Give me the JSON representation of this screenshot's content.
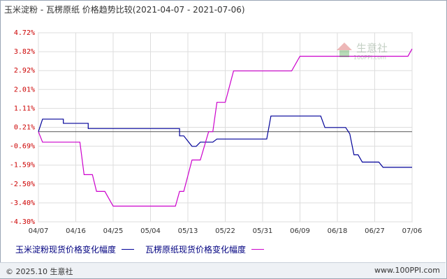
{
  "title": "玉米淀粉 - 瓦楞原纸 价格趋势比较(2021-04-07 - 2021-07-06)",
  "footer": {
    "copyright": "© 2025.10 生意社",
    "url": "www.100PPI.com"
  },
  "watermark": {
    "name": "生意社",
    "url": "100PPI.com"
  },
  "colors": {
    "series1": "#000099",
    "series2": "#cc00cc",
    "grid": "#dddddd",
    "zero": "#555555",
    "tick_label": "#cc0000"
  },
  "chart_data": {
    "type": "line",
    "title": "玉米淀粉 - 瓦楞原纸 价格趋势比较(2021-04-07 - 2021-07-06)",
    "y_ticks": [
      "4.72%",
      "3.82%",
      "2.92%",
      "2.01%",
      "1.11%",
      "0.21%",
      "-0.69%",
      "-1.59%",
      "-2.50%",
      "-3.40%",
      "-4.30%"
    ],
    "ylim": [
      -4.3,
      4.72
    ],
    "x_ticks": [
      "04/07",
      "04/16",
      "04/25",
      "05/04",
      "05/13",
      "05/22",
      "05/31",
      "06/09",
      "06/18",
      "06/27",
      "07/06"
    ],
    "xlim": [
      "2021-04-07",
      "2021-07-06"
    ],
    "grid": true,
    "legend_position": "bottom",
    "series": [
      {
        "name": "玉米淀粉现货价格变化幅度",
        "color": "#000099",
        "points": [
          [
            "2021-04-07",
            0.0
          ],
          [
            "2021-04-08",
            0.6
          ],
          [
            "2021-04-13",
            0.6
          ],
          [
            "2021-04-13",
            0.4
          ],
          [
            "2021-04-19",
            0.4
          ],
          [
            "2021-04-19",
            0.15
          ],
          [
            "2021-05-11",
            0.15
          ],
          [
            "2021-05-11",
            -0.2
          ],
          [
            "2021-05-12",
            -0.2
          ],
          [
            "2021-05-14",
            -0.7
          ],
          [
            "2021-05-15",
            -0.7
          ],
          [
            "2021-05-16",
            -0.5
          ],
          [
            "2021-05-19",
            -0.5
          ],
          [
            "2021-05-20",
            -0.35
          ],
          [
            "2021-06-01",
            -0.35
          ],
          [
            "2021-06-02",
            0.75
          ],
          [
            "2021-06-14",
            0.75
          ],
          [
            "2021-06-15",
            0.2
          ],
          [
            "2021-06-20",
            0.2
          ],
          [
            "2021-06-21",
            -0.1
          ],
          [
            "2021-06-22",
            -1.1
          ],
          [
            "2021-06-23",
            -1.1
          ],
          [
            "2021-06-24",
            -1.45
          ],
          [
            "2021-06-28",
            -1.45
          ],
          [
            "2021-06-29",
            -1.7
          ],
          [
            "2021-07-06",
            -1.7
          ]
        ]
      },
      {
        "name": "瓦楞原纸现货价格变化幅度",
        "color": "#cc00cc",
        "points": [
          [
            "2021-04-07",
            0.0
          ],
          [
            "2021-04-08",
            -0.5
          ],
          [
            "2021-04-17",
            -0.5
          ],
          [
            "2021-04-18",
            -2.05
          ],
          [
            "2021-04-20",
            -2.05
          ],
          [
            "2021-04-21",
            -2.85
          ],
          [
            "2021-04-23",
            -2.85
          ],
          [
            "2021-04-25",
            -3.55
          ],
          [
            "2021-05-10",
            -3.55
          ],
          [
            "2021-05-11",
            -2.85
          ],
          [
            "2021-05-12",
            -2.85
          ],
          [
            "2021-05-14",
            -1.35
          ],
          [
            "2021-05-16",
            -1.35
          ],
          [
            "2021-05-18",
            0.0
          ],
          [
            "2021-05-19",
            0.0
          ],
          [
            "2021-05-20",
            1.4
          ],
          [
            "2021-05-22",
            1.4
          ],
          [
            "2021-05-24",
            2.9
          ],
          [
            "2021-06-07",
            2.9
          ],
          [
            "2021-06-09",
            3.6
          ],
          [
            "2021-07-05",
            3.6
          ],
          [
            "2021-07-06",
            3.95
          ]
        ]
      }
    ]
  }
}
